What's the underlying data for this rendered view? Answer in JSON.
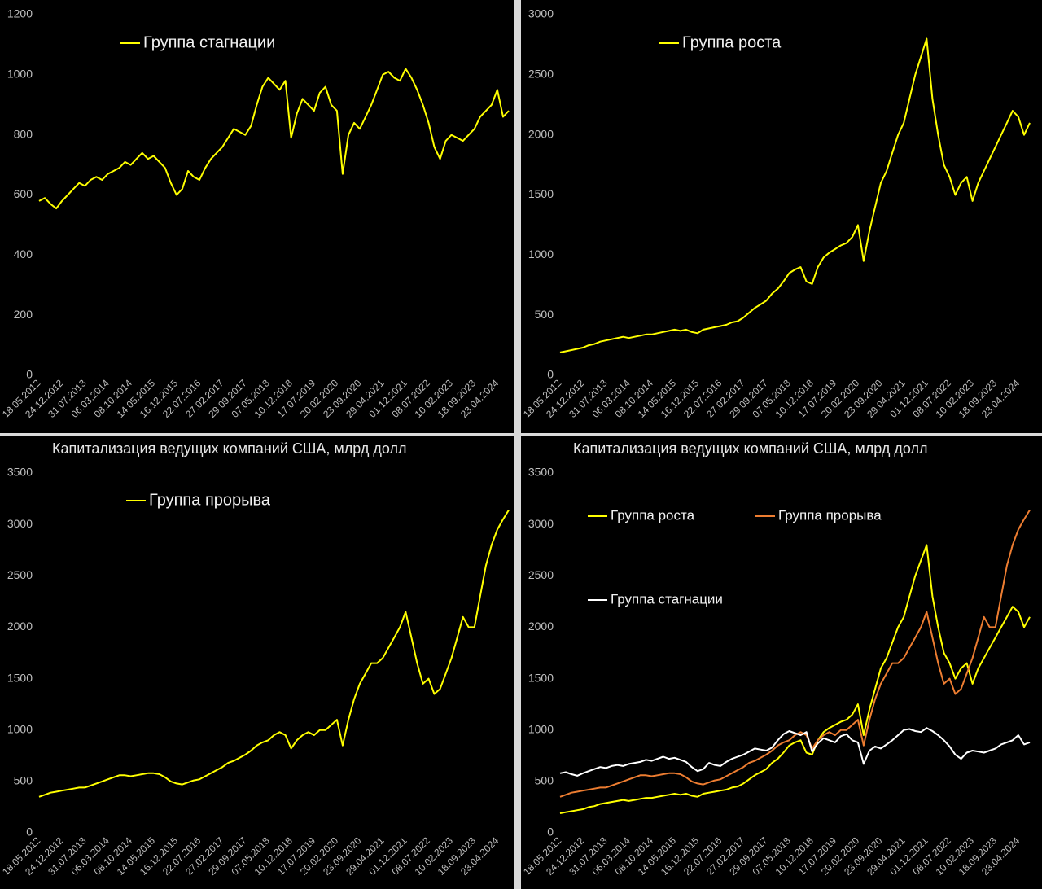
{
  "chart_data": [
    {
      "type": "line",
      "categories": [
        "18.05.2012",
        null,
        null,
        null,
        "24.12.2012",
        null,
        null,
        null,
        "31.07.2013",
        null,
        null,
        null,
        "06.03.2014",
        null,
        null,
        null,
        "08.10.2014",
        null,
        null,
        null,
        "14.05.2015",
        null,
        null,
        null,
        "16.12.2015",
        null,
        null,
        null,
        "22.07.2016",
        null,
        null,
        null,
        "27.02.2017",
        null,
        null,
        null,
        "29.09.2017",
        null,
        null,
        null,
        "07.05.2018",
        null,
        null,
        null,
        "10.12.2018",
        null,
        null,
        null,
        "17.07.2019",
        null,
        null,
        null,
        "20.02.2020",
        null,
        null,
        null,
        "23.09.2020",
        null,
        null,
        null,
        "29.04.2021",
        null,
        null,
        null,
        "01.12.2021",
        null,
        null,
        null,
        "08.07.2022",
        null,
        null,
        null,
        "10.02.2023",
        null,
        null,
        null,
        "18.09.2023",
        null,
        null,
        null,
        "23.04.2024",
        null,
        null
      ],
      "series": [
        {
          "name": "Группа стагнации",
          "color": "#ffff00",
          "values": [
            580,
            590,
            570,
            555,
            580,
            600,
            620,
            640,
            630,
            650,
            660,
            650,
            670,
            680,
            690,
            710,
            700,
            720,
            740,
            720,
            730,
            710,
            690,
            640,
            600,
            620,
            680,
            660,
            650,
            690,
            720,
            740,
            760,
            790,
            820,
            810,
            800,
            830,
            900,
            960,
            990,
            970,
            950,
            980,
            790,
            870,
            920,
            900,
            880,
            940,
            960,
            900,
            880,
            670,
            800,
            840,
            820,
            860,
            900,
            950,
            1000,
            1010,
            990,
            980,
            1020,
            990,
            950,
            900,
            840,
            760,
            720,
            780,
            800,
            790,
            780,
            800,
            820,
            860,
            880,
            900,
            950,
            860,
            880
          ]
        }
      ],
      "ylim": [
        0,
        1200
      ],
      "yticks": [
        0,
        200,
        400,
        600,
        800,
        1000,
        1200
      ]
    },
    {
      "type": "line",
      "categories": [
        "18.05.2012",
        null,
        null,
        null,
        "24.12.2012",
        null,
        null,
        null,
        "31.07.2013",
        null,
        null,
        null,
        "06.03.2014",
        null,
        null,
        null,
        "08.10.2014",
        null,
        null,
        null,
        "14.05.2015",
        null,
        null,
        null,
        "16.12.2015",
        null,
        null,
        null,
        "22.07.2016",
        null,
        null,
        null,
        "27.02.2017",
        null,
        null,
        null,
        "29.09.2017",
        null,
        null,
        null,
        "07.05.2018",
        null,
        null,
        null,
        "10.12.2018",
        null,
        null,
        null,
        "17.07.2019",
        null,
        null,
        null,
        "20.02.2020",
        null,
        null,
        null,
        "23.09.2020",
        null,
        null,
        null,
        "29.04.2021",
        null,
        null,
        null,
        "01.12.2021",
        null,
        null,
        null,
        "08.07.2022",
        null,
        null,
        null,
        "10.02.2023",
        null,
        null,
        null,
        "18.09.2023",
        null,
        null,
        null,
        "23.04.2024",
        null,
        null
      ],
      "series": [
        {
          "name": "Группа роста",
          "color": "#ffff00",
          "values": [
            190,
            200,
            210,
            220,
            230,
            250,
            260,
            280,
            290,
            300,
            310,
            320,
            310,
            320,
            330,
            340,
            340,
            350,
            360,
            370,
            380,
            370,
            380,
            360,
            350,
            380,
            390,
            400,
            410,
            420,
            440,
            450,
            480,
            520,
            560,
            590,
            620,
            680,
            720,
            780,
            850,
            880,
            900,
            780,
            760,
            900,
            980,
            1020,
            1050,
            1080,
            1100,
            1150,
            1250,
            950,
            1200,
            1400,
            1600,
            1700,
            1850,
            2000,
            2100,
            2300,
            2500,
            2650,
            2800,
            2300,
            2000,
            1750,
            1650,
            1500,
            1600,
            1650,
            1450,
            1600,
            1700,
            1800,
            1900,
            2000,
            2100,
            2200,
            2150,
            2000,
            2100
          ]
        }
      ],
      "ylim": [
        0,
        3000
      ],
      "yticks": [
        0,
        500,
        1000,
        1500,
        2000,
        2500,
        3000
      ]
    },
    {
      "type": "line",
      "title": "Капитализация ведущих компаний США, млрд долл",
      "categories": [
        "18.05.2012",
        null,
        null,
        null,
        "24.12.2012",
        null,
        null,
        null,
        "31.07.2013",
        null,
        null,
        null,
        "06.03.2014",
        null,
        null,
        null,
        "08.10.2014",
        null,
        null,
        null,
        "14.05.2015",
        null,
        null,
        null,
        "16.12.2015",
        null,
        null,
        null,
        "22.07.2016",
        null,
        null,
        null,
        "27.02.2017",
        null,
        null,
        null,
        "29.09.2017",
        null,
        null,
        null,
        "07.05.2018",
        null,
        null,
        null,
        "10.12.2018",
        null,
        null,
        null,
        "17.07.2019",
        null,
        null,
        null,
        "20.02.2020",
        null,
        null,
        null,
        "23.09.2020",
        null,
        null,
        null,
        "29.04.2021",
        null,
        null,
        null,
        "01.12.2021",
        null,
        null,
        null,
        "08.07.2022",
        null,
        null,
        null,
        "10.02.2023",
        null,
        null,
        null,
        "18.09.2023",
        null,
        null,
        null,
        "23.04.2024",
        null,
        null
      ],
      "series": [
        {
          "name": "Группа прорыва",
          "color": "#ffff00",
          "values": [
            350,
            370,
            390,
            400,
            410,
            420,
            430,
            440,
            440,
            460,
            480,
            500,
            520,
            540,
            560,
            560,
            550,
            560,
            570,
            580,
            580,
            570,
            540,
            500,
            480,
            470,
            490,
            510,
            520,
            550,
            580,
            610,
            640,
            680,
            700,
            730,
            760,
            800,
            850,
            880,
            900,
            950,
            980,
            950,
            820,
            900,
            950,
            980,
            950,
            1000,
            1000,
            1050,
            1100,
            850,
            1100,
            1300,
            1450,
            1550,
            1650,
            1650,
            1700,
            1800,
            1900,
            2000,
            2150,
            1900,
            1650,
            1450,
            1500,
            1350,
            1400,
            1550,
            1700,
            1900,
            2100,
            2000,
            2000,
            2300,
            2600,
            2800,
            2950,
            3050,
            3140
          ]
        }
      ],
      "ylim": [
        0,
        3500
      ],
      "yticks": [
        0,
        500,
        1000,
        1500,
        2000,
        2500,
        3000,
        3500
      ]
    },
    {
      "type": "line",
      "title": "Капитализация ведущих компаний США, млрд долл",
      "categories": [
        "18.05.2012",
        null,
        null,
        null,
        "24.12.2012",
        null,
        null,
        null,
        "31.07.2013",
        null,
        null,
        null,
        "06.03.2014",
        null,
        null,
        null,
        "08.10.2014",
        null,
        null,
        null,
        "14.05.2015",
        null,
        null,
        null,
        "16.12.2015",
        null,
        null,
        null,
        "22.07.2016",
        null,
        null,
        null,
        "27.02.2017",
        null,
        null,
        null,
        "29.09.2017",
        null,
        null,
        null,
        "07.05.2018",
        null,
        null,
        null,
        "10.12.2018",
        null,
        null,
        null,
        "17.07.2019",
        null,
        null,
        null,
        "20.02.2020",
        null,
        null,
        null,
        "23.09.2020",
        null,
        null,
        null,
        "29.04.2021",
        null,
        null,
        null,
        "01.12.2021",
        null,
        null,
        null,
        "08.07.2022",
        null,
        null,
        null,
        "10.02.2023",
        null,
        null,
        null,
        "18.09.2023",
        null,
        null,
        null,
        "23.04.2024",
        null,
        null
      ],
      "series": [
        {
          "name": "Группа роста",
          "color": "#ffff00",
          "values": [
            190,
            200,
            210,
            220,
            230,
            250,
            260,
            280,
            290,
            300,
            310,
            320,
            310,
            320,
            330,
            340,
            340,
            350,
            360,
            370,
            380,
            370,
            380,
            360,
            350,
            380,
            390,
            400,
            410,
            420,
            440,
            450,
            480,
            520,
            560,
            590,
            620,
            680,
            720,
            780,
            850,
            880,
            900,
            780,
            760,
            900,
            980,
            1020,
            1050,
            1080,
            1100,
            1150,
            1250,
            950,
            1200,
            1400,
            1600,
            1700,
            1850,
            2000,
            2100,
            2300,
            2500,
            2650,
            2800,
            2300,
            2000,
            1750,
            1650,
            1500,
            1600,
            1650,
            1450,
            1600,
            1700,
            1800,
            1900,
            2000,
            2100,
            2200,
            2150,
            2000,
            2100
          ]
        },
        {
          "name": "Группа прорыва",
          "color": "#ed7d31",
          "values": [
            350,
            370,
            390,
            400,
            410,
            420,
            430,
            440,
            440,
            460,
            480,
            500,
            520,
            540,
            560,
            560,
            550,
            560,
            570,
            580,
            580,
            570,
            540,
            500,
            480,
            470,
            490,
            510,
            520,
            550,
            580,
            610,
            640,
            680,
            700,
            730,
            760,
            800,
            850,
            880,
            900,
            950,
            980,
            950,
            820,
            900,
            950,
            980,
            950,
            1000,
            1000,
            1050,
            1100,
            850,
            1100,
            1300,
            1450,
            1550,
            1650,
            1650,
            1700,
            1800,
            1900,
            2000,
            2150,
            1900,
            1650,
            1450,
            1500,
            1350,
            1400,
            1550,
            1700,
            1900,
            2100,
            2000,
            2000,
            2300,
            2600,
            2800,
            2950,
            3050,
            3140
          ]
        },
        {
          "name": "Группа стагнации",
          "color": "#ffffff",
          "values": [
            580,
            590,
            570,
            555,
            580,
            600,
            620,
            640,
            630,
            650,
            660,
            650,
            670,
            680,
            690,
            710,
            700,
            720,
            740,
            720,
            730,
            710,
            690,
            640,
            600,
            620,
            680,
            660,
            650,
            690,
            720,
            740,
            760,
            790,
            820,
            810,
            800,
            830,
            900,
            960,
            990,
            970,
            950,
            980,
            790,
            870,
            920,
            900,
            880,
            940,
            960,
            900,
            880,
            670,
            800,
            840,
            820,
            860,
            900,
            950,
            1000,
            1010,
            990,
            980,
            1020,
            990,
            950,
            900,
            840,
            760,
            720,
            780,
            800,
            790,
            780,
            800,
            820,
            860,
            880,
            900,
            950,
            860,
            880
          ]
        }
      ],
      "ylim": [
        0,
        3500
      ],
      "yticks": [
        0,
        500,
        1000,
        1500,
        2000,
        2500,
        3000,
        3500
      ]
    }
  ]
}
